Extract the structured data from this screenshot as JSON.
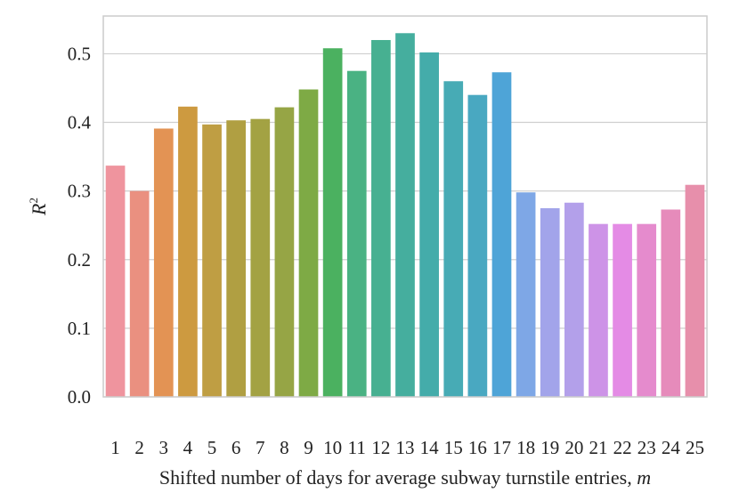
{
  "chart_data": {
    "type": "bar",
    "xlabel": "Shifted number of days for average subway turnstile entries, ",
    "xlabel_var": "m",
    "ylabel": "R",
    "ylabel_sup": "2",
    "ylim": [
      0,
      0.555
    ],
    "yticks": [
      "0.0",
      "0.1",
      "0.2",
      "0.3",
      "0.4",
      "0.5"
    ],
    "grid": true,
    "categories": [
      "1",
      "2",
      "3",
      "4",
      "5",
      "6",
      "7",
      "8",
      "9",
      "10",
      "11",
      "12",
      "13",
      "14",
      "15",
      "16",
      "17",
      "18",
      "19",
      "20",
      "21",
      "22",
      "23",
      "24",
      "25"
    ],
    "values": [
      0.337,
      0.3,
      0.391,
      0.423,
      0.397,
      0.403,
      0.405,
      0.422,
      0.448,
      0.508,
      0.475,
      0.52,
      0.53,
      0.502,
      0.46,
      0.44,
      0.473,
      0.298,
      0.275,
      0.283,
      0.252,
      0.252,
      0.252,
      0.273,
      0.309
    ],
    "colors": [
      "#ef949e",
      "#ea9080",
      "#e39354",
      "#cd9a40",
      "#bf9e43",
      "#b09f42",
      "#a3a243",
      "#96a545",
      "#7eaa45",
      "#4bb160",
      "#4ab283",
      "#47b091",
      "#45ae9e",
      "#44acaa",
      "#47abb5",
      "#49a8c1",
      "#4ea4d7",
      "#7ea7e6",
      "#a2a4ea",
      "#b3a0ea",
      "#cd93e7",
      "#e48be5",
      "#e58bcd",
      "#e68bbb",
      "#e78fab"
    ]
  }
}
